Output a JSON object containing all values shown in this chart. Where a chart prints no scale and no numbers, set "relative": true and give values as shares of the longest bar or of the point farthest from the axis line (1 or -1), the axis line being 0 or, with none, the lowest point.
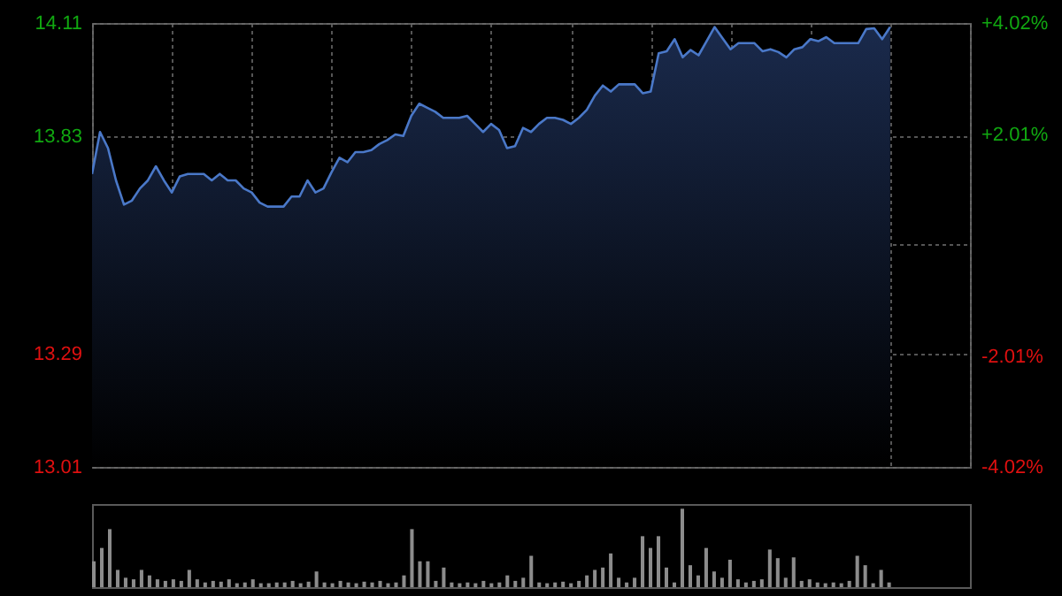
{
  "chart_data": [
    {
      "type": "area",
      "categories": [
        null,
        null,
        null,
        null,
        null,
        null,
        null,
        null,
        null,
        null,
        null,
        null,
        null,
        null,
        null,
        null,
        null,
        null,
        null,
        null,
        null,
        null,
        null,
        null,
        null,
        null,
        null,
        null,
        null,
        null,
        null,
        null,
        null,
        null,
        null,
        null,
        null,
        null,
        null,
        null,
        null,
        null,
        null,
        null,
        null,
        null,
        null,
        null,
        null,
        null,
        null,
        null,
        null,
        null,
        null,
        null,
        null,
        null,
        null,
        null,
        null,
        null,
        null,
        null,
        null,
        null,
        null,
        null,
        null,
        null,
        null,
        null,
        null,
        null,
        null,
        null,
        null,
        null,
        null,
        null,
        null,
        null,
        null,
        null,
        null,
        null,
        null,
        null,
        null,
        null,
        null,
        null,
        null,
        null,
        null,
        null,
        null,
        null,
        null,
        null,
        null
      ],
      "series": [
        {
          "color": "#4a78c8",
          "values": [
            13.736,
            13.84,
            13.8,
            13.72,
            13.66,
            13.67,
            13.7,
            13.72,
            13.755,
            13.72,
            13.69,
            13.73,
            13.736,
            13.736,
            13.736,
            13.72,
            13.736,
            13.72,
            13.72,
            13.7,
            13.69,
            13.665,
            13.655,
            13.655,
            13.655,
            13.68,
            13.68,
            13.72,
            13.69,
            13.7,
            13.74,
            13.776,
            13.765,
            13.79,
            13.79,
            13.795,
            13.81,
            13.82,
            13.834,
            13.83,
            13.88,
            13.91,
            13.9,
            13.89,
            13.875,
            13.875,
            13.875,
            13.88,
            13.86,
            13.84,
            13.86,
            13.845,
            13.8,
            13.805,
            13.85,
            13.84,
            13.86,
            13.875,
            13.875,
            13.87,
            13.86,
            13.875,
            13.895,
            13.93,
            13.955,
            13.94,
            13.958,
            13.958,
            13.958,
            13.936,
            13.94,
            14.035,
            14.04,
            14.07,
            14.025,
            14.043,
            14.03,
            14.065,
            14.1,
            14.072,
            14.045,
            14.06,
            14.06,
            14.06,
            14.04,
            14.045,
            14.038,
            14.025,
            14.045,
            14.05,
            14.07,
            14.065,
            14.075,
            14.06,
            14.06,
            14.06,
            14.06,
            14.095,
            14.097,
            14.07,
            14.1
          ]
        }
      ],
      "ylim": [
        13.01,
        14.11
      ],
      "yticks": [
        13.01,
        13.29,
        {
          "value": 13.56,
          "label": null
        },
        13.83,
        14.11
      ],
      "y2lim": [
        -4.02,
        4.02
      ],
      "y2ticks": [
        {
          "value": -4.02,
          "label": "-4.02%"
        },
        {
          "value": -2.01,
          "label": "-2.01%"
        },
        {
          "value": 2.01,
          "label": "+2.01%"
        },
        {
          "value": 4.02,
          "label": "+4.02%"
        }
      ],
      "grid": true,
      "tick_labels": "y"
    },
    {
      "type": "bar",
      "relative": true,
      "categories": [
        null,
        null,
        null,
        null,
        null,
        null,
        null,
        null,
        null,
        null,
        null,
        null,
        null,
        null,
        null,
        null,
        null,
        null,
        null,
        null,
        null,
        null,
        null,
        null,
        null,
        null,
        null,
        null,
        null,
        null,
        null,
        null,
        null,
        null,
        null,
        null,
        null,
        null,
        null,
        null,
        null,
        null,
        null,
        null,
        null,
        null,
        null,
        null,
        null,
        null,
        null,
        null,
        null,
        null,
        null,
        null,
        null,
        null,
        null,
        null,
        null,
        null,
        null,
        null,
        null,
        null,
        null,
        null,
        null,
        null,
        null,
        null,
        null,
        null,
        null,
        null,
        null,
        null,
        null,
        null,
        null,
        null,
        null,
        null,
        null,
        null,
        null,
        null,
        null,
        null,
        null,
        null,
        null,
        null,
        null,
        null,
        null,
        null,
        null,
        null,
        null
      ],
      "values": [
        0.33,
        0.5,
        0.74,
        0.22,
        0.12,
        0.1,
        0.22,
        0.15,
        0.1,
        0.08,
        0.1,
        0.08,
        0.22,
        0.1,
        0.06,
        0.08,
        0.07,
        0.1,
        0.05,
        0.06,
        0.1,
        0.05,
        0.05,
        0.06,
        0.06,
        0.08,
        0.05,
        0.07,
        0.2,
        0.06,
        0.05,
        0.08,
        0.06,
        0.05,
        0.07,
        0.06,
        0.08,
        0.05,
        0.06,
        0.15,
        0.74,
        0.33,
        0.33,
        0.08,
        0.25,
        0.06,
        0.05,
        0.06,
        0.05,
        0.08,
        0.05,
        0.06,
        0.15,
        0.08,
        0.12,
        0.4,
        0.06,
        0.05,
        0.06,
        0.07,
        0.05,
        0.08,
        0.15,
        0.22,
        0.25,
        0.43,
        0.12,
        0.06,
        0.12,
        0.65,
        0.5,
        0.65,
        0.25,
        0.06,
        1,
        0.28,
        0.15,
        0.5,
        0.2,
        0.12,
        0.35,
        0.1,
        0.06,
        0.08,
        0.1,
        0.48,
        0.37,
        0.12,
        0.38,
        0.08,
        0.1,
        0.06,
        0.05,
        0.06,
        0.05,
        0.08,
        0.4,
        0.28,
        0.05,
        0.22,
        0.06
      ],
      "color": "#8c8c8c"
    }
  ]
}
